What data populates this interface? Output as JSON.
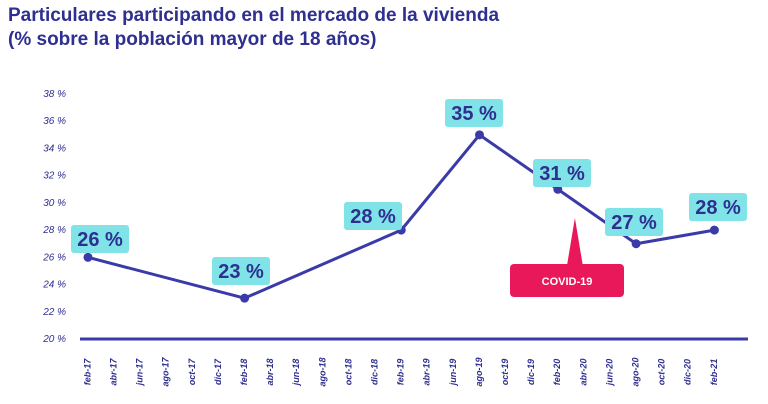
{
  "title_line1": "Particulares participando en el mercado de la vivienda",
  "title_line2": "(% sobre la población mayor de 18 años)",
  "colors": {
    "line": "#3a3aa8",
    "label_bg": "#7fe3e8",
    "text": "#2e2f8f",
    "covid": "#e8185a"
  },
  "annotation": {
    "text": "COVID-19",
    "x": "abr-20"
  },
  "chart_data": {
    "type": "line",
    "title": "Particulares participando en el mercado de la vivienda",
    "subtitle": "(% sobre la población mayor de 18 años)",
    "ylim": [
      20,
      38
    ],
    "yticks": [
      "20 %",
      "22 %",
      "24 %",
      "26 %",
      "28 %",
      "30 %",
      "32 %",
      "34 %",
      "36 %",
      "38 %"
    ],
    "categories": [
      "feb-17",
      "abr-17",
      "jun-17",
      "ago-17",
      "oct-17",
      "dic-17",
      "feb-18",
      "abr-18",
      "jun-18",
      "ago-18",
      "oct-18",
      "dic-18",
      "feb-19",
      "abr-19",
      "jun-19",
      "ago-19",
      "oct-19",
      "dic-19",
      "feb-20",
      "abr-20",
      "jun-20",
      "ago-20",
      "oct-20",
      "dic-20",
      "feb-21"
    ],
    "points": [
      {
        "x": "feb-17",
        "y": 26,
        "label": "26 %"
      },
      {
        "x": "feb-18",
        "y": 23,
        "label": "23 %"
      },
      {
        "x": "feb-19",
        "y": 28,
        "label": "28 %"
      },
      {
        "x": "ago-19",
        "y": 35,
        "label": "35 %"
      },
      {
        "x": "feb-20",
        "y": 31,
        "label": "31 %"
      },
      {
        "x": "ago-20",
        "y": 27,
        "label": "27 %"
      },
      {
        "x": "feb-21",
        "y": 28,
        "label": "28 %"
      }
    ],
    "grid": false
  }
}
